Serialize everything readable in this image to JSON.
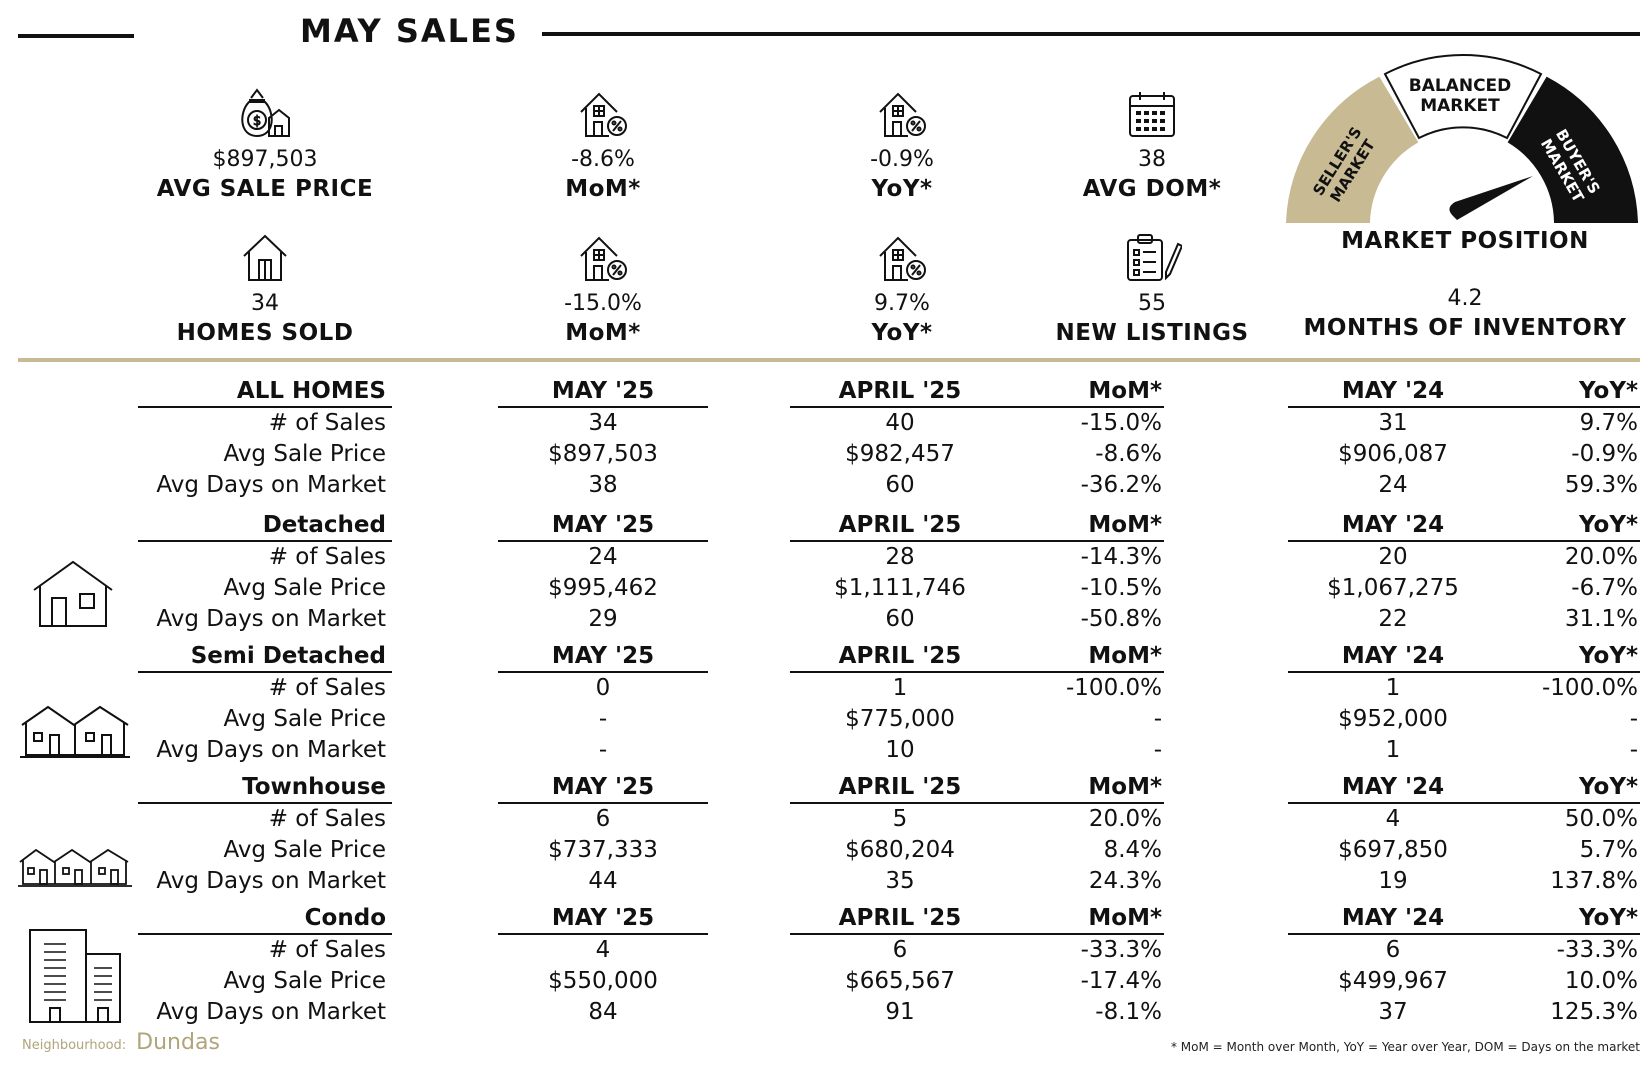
{
  "page": {
    "title": "MAY SALES"
  },
  "kpis": {
    "avg_sale_price": {
      "value": "$897,503",
      "label": "AVG SALE PRICE",
      "icon": "money-bag-house-icon"
    },
    "price_mom": {
      "value": "-8.6%",
      "label": "MoM*",
      "icon": "house-percent-icon"
    },
    "price_yoy": {
      "value": "-0.9%",
      "label": "YoY*",
      "icon": "house-percent-icon"
    },
    "avg_dom": {
      "value": "38",
      "label": "AVG DOM*",
      "icon": "calendar-icon"
    },
    "homes_sold": {
      "value": "34",
      "label": "HOMES SOLD",
      "icon": "house-icon"
    },
    "sold_mom": {
      "value": "-15.0%",
      "label": "MoM*",
      "icon": "house-percent-icon"
    },
    "sold_yoy": {
      "value": "9.7%",
      "label": "YoY*",
      "icon": "house-percent-icon"
    },
    "new_listings": {
      "value": "55",
      "label": "NEW LISTINGS",
      "icon": "clipboard-pencil-icon"
    },
    "months_inventory": {
      "value": "4.2",
      "label": "MONTHS OF INVENTORY"
    }
  },
  "gauge": {
    "seller": "SELLER'S MARKET",
    "balanced_line1": "BALANCED",
    "balanced_line2": "MARKET",
    "buyer": "BUYER'S MARKET",
    "label": "MARKET POSITION",
    "colors": {
      "seller": "#c8bb94",
      "balanced": "#ffffff",
      "buyer": "#111111"
    }
  },
  "columns": {
    "current": "MAY '25",
    "previous": "APRIL '25",
    "mom": "MoM*",
    "last_year": "MAY '24",
    "yoy": "YoY*"
  },
  "sections": [
    {
      "name": "ALL HOMES",
      "icon": "",
      "rows": [
        {
          "metric": "# of Sales",
          "current": "34",
          "previous": "40",
          "mom": "-15.0%",
          "last_year": "31",
          "yoy": "9.7%"
        },
        {
          "metric": "Avg Sale Price",
          "current": "$897,503",
          "previous": "$982,457",
          "mom": "-8.6%",
          "last_year": "$906,087",
          "yoy": "-0.9%"
        },
        {
          "metric": "Avg Days on Market",
          "current": "38",
          "previous": "60",
          "mom": "-36.2%",
          "last_year": "24",
          "yoy": "59.3%"
        }
      ]
    },
    {
      "name": "Detached",
      "icon": "detached-house-icon",
      "rows": [
        {
          "metric": "# of Sales",
          "current": "24",
          "previous": "28",
          "mom": "-14.3%",
          "last_year": "20",
          "yoy": "20.0%"
        },
        {
          "metric": "Avg Sale Price",
          "current": "$995,462",
          "previous": "$1,111,746",
          "mom": "-10.5%",
          "last_year": "$1,067,275",
          "yoy": "-6.7%"
        },
        {
          "metric": "Avg Days on Market",
          "current": "29",
          "previous": "60",
          "mom": "-50.8%",
          "last_year": "22",
          "yoy": "31.1%"
        }
      ]
    },
    {
      "name": "Semi Detached",
      "icon": "semi-detached-house-icon",
      "rows": [
        {
          "metric": "# of Sales",
          "current": "0",
          "previous": "1",
          "mom": "-100.0%",
          "last_year": "1",
          "yoy": "-100.0%"
        },
        {
          "metric": "Avg Sale Price",
          "current": "-",
          "previous": "$775,000",
          "mom": "-",
          "last_year": "$952,000",
          "yoy": "-"
        },
        {
          "metric": "Avg Days on Market",
          "current": "-",
          "previous": "10",
          "mom": "-",
          "last_year": "1",
          "yoy": "-"
        }
      ]
    },
    {
      "name": "Townhouse",
      "icon": "townhouse-icon",
      "rows": [
        {
          "metric": "# of Sales",
          "current": "6",
          "previous": "5",
          "mom": "20.0%",
          "last_year": "4",
          "yoy": "50.0%"
        },
        {
          "metric": "Avg Sale Price",
          "current": "$737,333",
          "previous": "$680,204",
          "mom": "8.4%",
          "last_year": "$697,850",
          "yoy": "5.7%"
        },
        {
          "metric": "Avg Days on Market",
          "current": "44",
          "previous": "35",
          "mom": "24.3%",
          "last_year": "19",
          "yoy": "137.8%"
        }
      ]
    },
    {
      "name": "Condo",
      "icon": "condo-building-icon",
      "rows": [
        {
          "metric": "# of Sales",
          "current": "4",
          "previous": "6",
          "mom": "-33.3%",
          "last_year": "6",
          "yoy": "-33.3%"
        },
        {
          "metric": "Avg Sale Price",
          "current": "$550,000",
          "previous": "$665,567",
          "mom": "-17.4%",
          "last_year": "$499,967",
          "yoy": "10.0%"
        },
        {
          "metric": "Avg Days on Market",
          "current": "84",
          "previous": "91",
          "mom": "-8.1%",
          "last_year": "37",
          "yoy": "125.3%"
        }
      ]
    }
  ],
  "footer": {
    "neighbourhood_label": "Neighbourhood:",
    "neighbourhood": "Dundas",
    "note": "* MoM = Month over Month, YoY = Year over Year, DOM = Days on the market"
  }
}
